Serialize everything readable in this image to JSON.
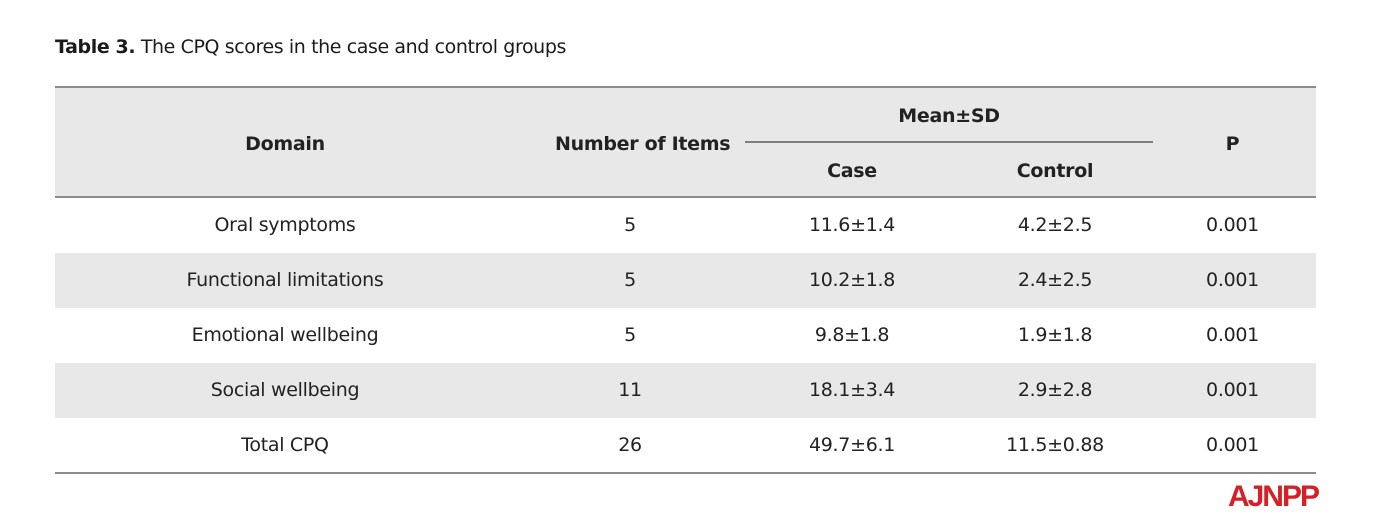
{
  "caption": {
    "label": "Table 3.",
    "text": " The CPQ scores in the case and control groups"
  },
  "table": {
    "headers": {
      "domain": "Domain",
      "items": "Number of Items",
      "mean_sd": "Mean±SD",
      "case": "Case",
      "control": "Control",
      "p": "P"
    },
    "rows": [
      {
        "domain": "Oral symptoms",
        "items": "5",
        "case": "11.6±1.4",
        "control": "4.2±2.5",
        "p": "0.001"
      },
      {
        "domain": "Functional limitations",
        "items": "5",
        "case": "10.2±1.8",
        "control": "2.4±2.5",
        "p": "0.001"
      },
      {
        "domain": "Emotional wellbeing",
        "items": "5",
        "case": "9.8±1.8",
        "control": "1.9±1.8",
        "p": "0.001"
      },
      {
        "domain": "Social wellbeing",
        "items": "11",
        "case": "18.1±3.4",
        "control": "2.9±2.8",
        "p": "0.001"
      },
      {
        "domain": "Total CPQ",
        "items": "26",
        "case": "49.7±6.1",
        "control": "11.5±0.88",
        "p": "0.001"
      }
    ]
  },
  "logo": {
    "text": "AJNPP",
    "color": "#d42127"
  },
  "colors": {
    "header_fill": "#e8e8e8",
    "rule": "#8c8c8c"
  }
}
